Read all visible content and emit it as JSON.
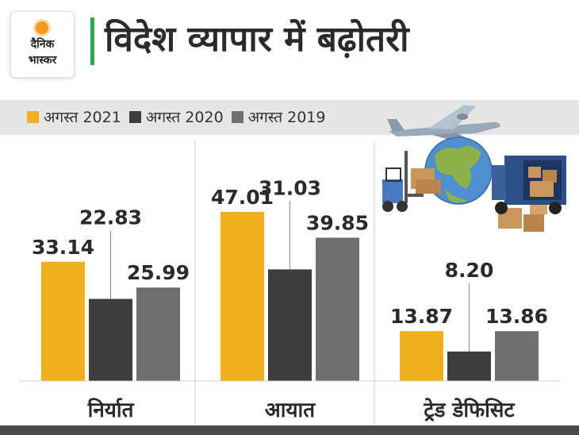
{
  "brand": {
    "logo_line1": "दैनिक",
    "logo_line2": "भास्कर"
  },
  "title": "विदेश व्यापार में बढ़ोतरी",
  "colors": {
    "accent": "#2ea84e",
    "series": [
      "#f0b020",
      "#3d3d3d",
      "#6f6f6f"
    ]
  },
  "icons": [
    "airplane-icon",
    "globe-icon",
    "forklift-icon",
    "cargo-truck-icon",
    "cardboard-boxes-icon"
  ],
  "chart_data": {
    "type": "bar",
    "categories": [
      "निर्यात",
      "आयात",
      "ट्रेड डेफिसिट"
    ],
    "series": [
      {
        "name": "अगस्त 2021",
        "values": [
          33.14,
          47.01,
          13.87
        ]
      },
      {
        "name": "अगस्त 2020",
        "values": [
          22.83,
          31.03,
          8.2
        ]
      },
      {
        "name": "अगस्त 2019",
        "values": [
          25.99,
          39.85,
          13.86
        ]
      }
    ],
    "value_labels": [
      [
        "33.14",
        "22.83",
        "25.99"
      ],
      [
        "47.01",
        "31.03",
        "39.85"
      ],
      [
        "13.87",
        "8.20",
        "13.86"
      ]
    ],
    "legend_position": "top",
    "grid": false,
    "ylim": [
      0,
      47.01
    ]
  }
}
